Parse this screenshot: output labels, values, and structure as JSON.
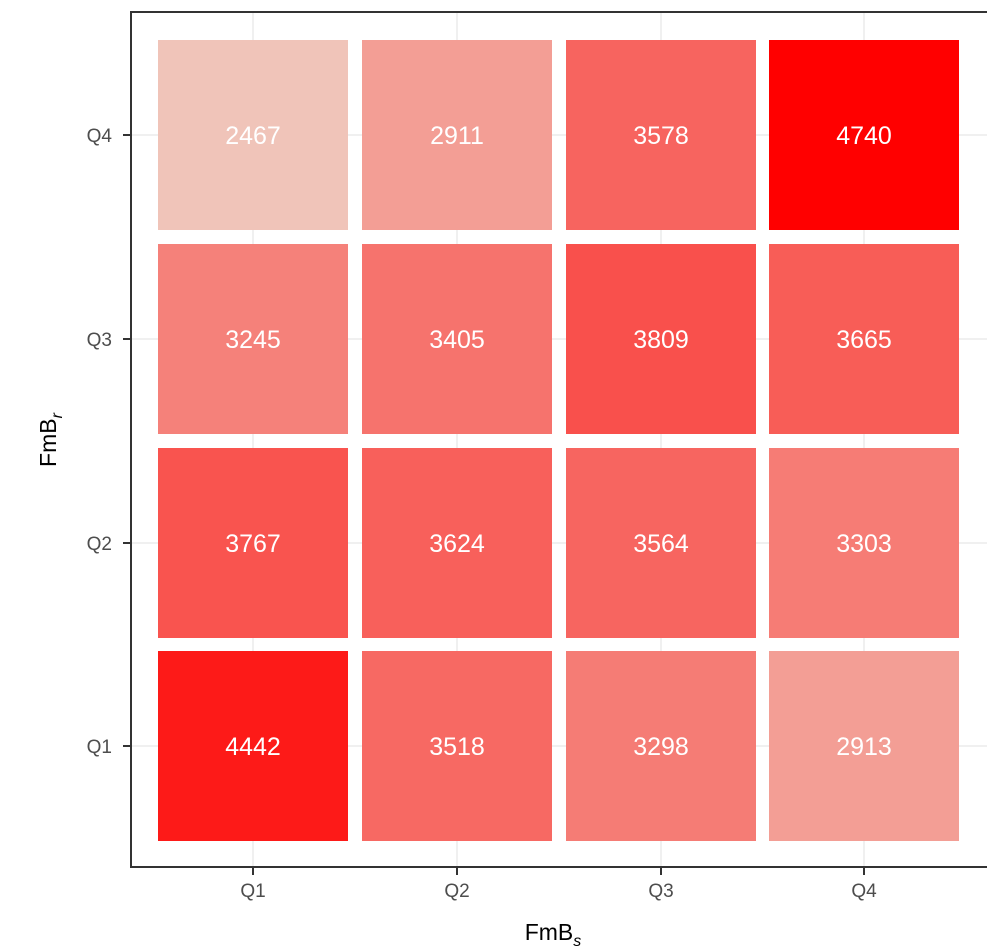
{
  "chart_data": {
    "type": "heatmap",
    "x_categories": [
      "Q1",
      "Q2",
      "Q3",
      "Q4"
    ],
    "y_categories": [
      "Q1",
      "Q2",
      "Q3",
      "Q4"
    ],
    "xlabel": {
      "base": "FmB",
      "sub": "s"
    },
    "ylabel": {
      "base": "FmB",
      "sub": "r"
    },
    "cells": [
      {
        "x": "Q1",
        "y": "Q1",
        "value": 4442,
        "label": "4442"
      },
      {
        "x": "Q2",
        "y": "Q1",
        "value": 3518,
        "label": "3518"
      },
      {
        "x": "Q3",
        "y": "Q1",
        "value": 3298,
        "label": "3298"
      },
      {
        "x": "Q4",
        "y": "Q1",
        "value": 2913,
        "label": "2913"
      },
      {
        "x": "Q1",
        "y": "Q2",
        "value": 3767,
        "label": "3767"
      },
      {
        "x": "Q2",
        "y": "Q2",
        "value": 3624,
        "label": "3624"
      },
      {
        "x": "Q3",
        "y": "Q2",
        "value": 3564,
        "label": "3564"
      },
      {
        "x": "Q4",
        "y": "Q2",
        "value": 3303,
        "label": "3303"
      },
      {
        "x": "Q1",
        "y": "Q3",
        "value": 3245,
        "label": "3245"
      },
      {
        "x": "Q2",
        "y": "Q3",
        "value": 3405,
        "label": "3405"
      },
      {
        "x": "Q3",
        "y": "Q3",
        "value": 3809,
        "label": "3809"
      },
      {
        "x": "Q4",
        "y": "Q3",
        "value": 3665,
        "label": "3665"
      },
      {
        "x": "Q1",
        "y": "Q4",
        "value": 2467,
        "label": "2467"
      },
      {
        "x": "Q2",
        "y": "Q4",
        "value": 2911,
        "label": "2911"
      },
      {
        "x": "Q3",
        "y": "Q4",
        "value": 3578,
        "label": "3578"
      },
      {
        "x": "Q4",
        "y": "Q4",
        "value": 4740,
        "label": "4740"
      }
    ],
    "color_scale": {
      "low": "#f0c4b9",
      "high": "#ff0000"
    },
    "grid": true,
    "legend": "none"
  }
}
